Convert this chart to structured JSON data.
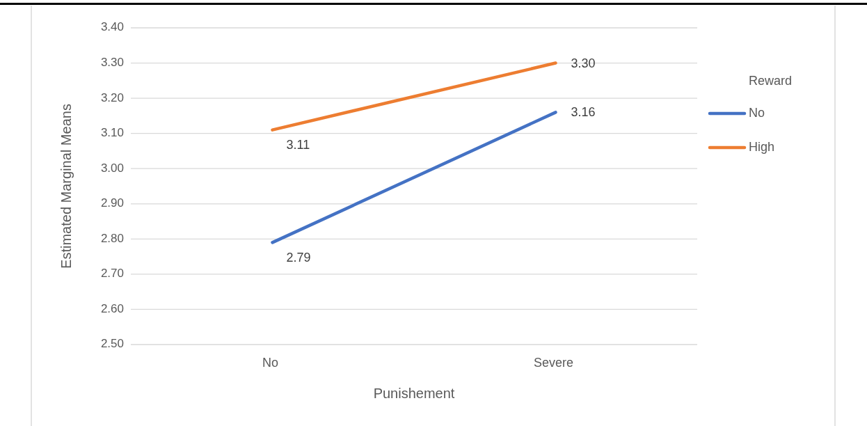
{
  "chart_data": {
    "type": "line",
    "xlabel": "Punishement",
    "ylabel": "Estimated Marginal Means",
    "legend_title": "Reward",
    "categories": [
      "No",
      "Severe"
    ],
    "series": [
      {
        "name": "No",
        "color": "#4472c4",
        "values": [
          2.79,
          3.16
        ],
        "value_labels": [
          "2.79",
          "3.16"
        ]
      },
      {
        "name": "High",
        "color": "#ed7d31",
        "values": [
          3.11,
          3.3
        ],
        "value_labels": [
          "3.11",
          "3.30"
        ]
      }
    ],
    "ylim": [
      2.5,
      3.4
    ],
    "yticks": [
      {
        "value": 2.5,
        "label": "2.50"
      },
      {
        "value": 2.6,
        "label": "2.60"
      },
      {
        "value": 2.7,
        "label": "2.70"
      },
      {
        "value": 2.8,
        "label": "2.80"
      },
      {
        "value": 2.9,
        "label": "2.90"
      },
      {
        "value": 3.0,
        "label": "3.00"
      },
      {
        "value": 3.1,
        "label": "3.10"
      },
      {
        "value": 3.2,
        "label": "3.20"
      },
      {
        "value": 3.3,
        "label": "3.30"
      },
      {
        "value": 3.4,
        "label": "3.40"
      }
    ],
    "grid": "y",
    "legend": "right",
    "marker": "none",
    "line_style": "solid"
  }
}
